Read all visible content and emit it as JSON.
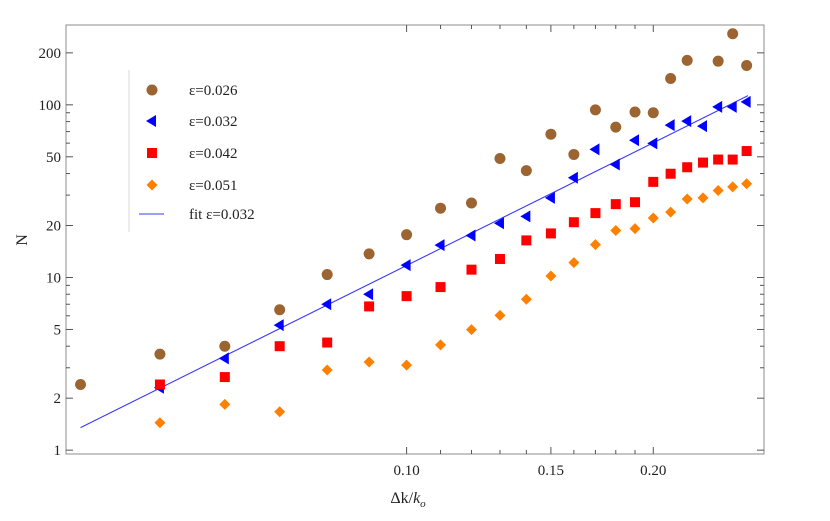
{
  "chart_data": {
    "type": "scatter",
    "title": "",
    "xlabel": "Δk/k_o",
    "xlabel_parts": {
      "main": "Δk/",
      "italic": "k",
      "sub": "o"
    },
    "ylabel": "N",
    "xscale": "log",
    "yscale": "log",
    "xlim": [
      0.0384,
      0.273
    ],
    "ylim": [
      0.95,
      290
    ],
    "grid": false,
    "legend_position": "upper-left-inside",
    "x_ticks": [
      {
        "value": 0.1,
        "label": "0.10"
      },
      {
        "value": 0.15,
        "label": "0.15"
      },
      {
        "value": 0.2,
        "label": "0.20"
      }
    ],
    "x_minor_ticks": [
      0.11,
      0.12,
      0.13,
      0.14,
      0.16,
      0.17,
      0.18,
      0.19
    ],
    "y_ticks": [
      {
        "value": 1,
        "label": "1"
      },
      {
        "value": 2,
        "label": "2"
      },
      {
        "value": 5,
        "label": "5"
      },
      {
        "value": 10,
        "label": "10"
      },
      {
        "value": 20,
        "label": "20"
      },
      {
        "value": 50,
        "label": "50"
      },
      {
        "value": 100,
        "label": "100"
      },
      {
        "value": 200,
        "label": "200"
      }
    ],
    "y_minor_ticks": [
      3,
      4,
      6,
      7,
      8,
      9,
      30,
      40,
      60,
      70,
      80,
      90
    ],
    "x": [
      0.04,
      0.05,
      0.06,
      0.07,
      0.08,
      0.09,
      0.1,
      0.11,
      0.12,
      0.13,
      0.14,
      0.15,
      0.16,
      0.17,
      0.18,
      0.19,
      0.2,
      0.21,
      0.22,
      0.23,
      0.24,
      0.25,
      0.26
    ],
    "series": [
      {
        "name": "ε=0.026",
        "marker": "circle",
        "color": "#9b6431",
        "values": [
          2.4,
          3.6,
          4.0,
          6.5,
          10.4,
          13.7,
          17.7,
          25.2,
          27.0,
          48.9,
          41.6,
          67.6,
          51.6,
          93.5,
          74.3,
          90.9,
          90.0,
          142,
          181,
          null,
          179,
          258,
          169
        ]
      },
      {
        "name": "ε=0.032",
        "marker": "triangle-left",
        "color": "#0000ff",
        "values": [
          null,
          2.3,
          3.4,
          5.3,
          7.0,
          8.0,
          11.8,
          15.4,
          17.5,
          20.6,
          22.6,
          28.9,
          37.8,
          55.2,
          45.1,
          62.4,
          59.8,
          76.3,
          80.5,
          75.3,
          97.3,
          97.3,
          104
        ]
      },
      {
        "name": "ε=0.042",
        "marker": "square",
        "color": "#ff0000",
        "values": [
          null,
          2.4,
          2.65,
          4.0,
          4.2,
          6.8,
          7.8,
          8.8,
          11.1,
          12.8,
          16.4,
          18.0,
          20.9,
          23.6,
          26.6,
          27.3,
          35.8,
          39.9,
          43.5,
          46.3,
          48.2,
          48.2,
          54.0
        ]
      },
      {
        "name": "ε=0.051",
        "marker": "diamond",
        "color": "#ff8000",
        "values": [
          null,
          1.44,
          1.84,
          1.67,
          2.91,
          3.24,
          3.11,
          4.07,
          4.99,
          6.03,
          7.48,
          10.2,
          12.2,
          15.5,
          18.7,
          19.2,
          22.1,
          23.9,
          28.5,
          28.9,
          31.9,
          33.5,
          34.9
        ]
      }
    ],
    "fit": {
      "name": "fit ε=0.032",
      "color": "#3a3aff",
      "type": "power-law line",
      "x_range": [
        0.04,
        0.261
      ],
      "y_range": [
        1.35,
        113
      ],
      "exponent": 2.36
    }
  },
  "legend": {
    "items": [
      {
        "prefix": "",
        "label": "ε=0.026"
      },
      {
        "prefix": "",
        "label": "ε=0.032"
      },
      {
        "prefix": "",
        "label": "ε=0.042"
      },
      {
        "prefix": "",
        "label": "ε=0.051"
      },
      {
        "prefix": "fit ",
        "label": "fit ε=0.032"
      }
    ]
  },
  "axes": {
    "x_title_main": "Δk/",
    "x_title_italic": "k",
    "x_title_sub": "o",
    "y_title": "N"
  },
  "colors": {
    "frame": "#8c8c8c",
    "tick": "#555555",
    "legend_divider": "#d8d8d8"
  }
}
